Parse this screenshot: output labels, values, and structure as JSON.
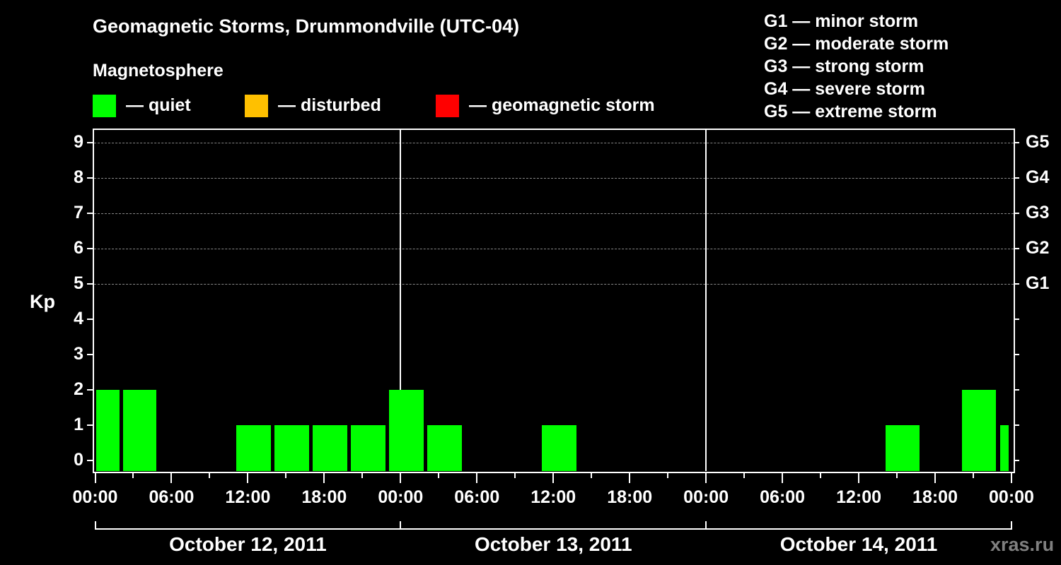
{
  "header": {
    "title": "Geomagnetic Storms, Drummondville (UTC-04)",
    "subtitle": "Magnetosphere"
  },
  "legend": {
    "items": [
      {
        "label": "— quiet",
        "color": "#00ff00"
      },
      {
        "label": "— disturbed",
        "color": "#ffc000"
      },
      {
        "label": "— geomagnetic storm",
        "color": "#ff0000"
      }
    ]
  },
  "storm_scale": [
    "G1 — minor storm",
    "G2 — moderate storm",
    "G3 — strong storm",
    "G4 — severe storm",
    "G5 — extreme storm"
  ],
  "axes": {
    "y_label": "Kp",
    "y_ticks": [
      "0",
      "1",
      "2",
      "3",
      "4",
      "5",
      "6",
      "7",
      "8",
      "9"
    ],
    "g_ticks": [
      {
        "label": "G1",
        "kp": 5
      },
      {
        "label": "G2",
        "kp": 6
      },
      {
        "label": "G3",
        "kp": 7
      },
      {
        "label": "G4",
        "kp": 8
      },
      {
        "label": "G5",
        "kp": 9
      }
    ],
    "x_ticks": [
      "00:00",
      "06:00",
      "12:00",
      "18:00",
      "00:00",
      "06:00",
      "12:00",
      "18:00",
      "00:00",
      "06:00",
      "12:00",
      "18:00",
      "00:00"
    ],
    "dates": [
      "October 12, 2011",
      "October 13, 2011",
      "October 14, 2011"
    ]
  },
  "watermark": "xras.ru",
  "chart_data": {
    "type": "bar",
    "title": "Geomagnetic Storms, Drummondville (UTC-04)",
    "subtitle": "Magnetosphere",
    "xlabel": "",
    "ylabel": "Kp",
    "ylim": [
      0,
      9
    ],
    "y2_labels": {
      "5": "G1",
      "6": "G2",
      "7": "G3",
      "8": "G4",
      "9": "G5"
    },
    "grid": "dashed horizontal at Kp 5-9",
    "legend": [
      "quiet",
      "disturbed",
      "geomagnetic storm"
    ],
    "x_range": [
      "2011-10-12 00:00",
      "2011-10-15 00:00"
    ],
    "bars": [
      {
        "start_h": 0.1,
        "end_h": 1.9,
        "kp": 2,
        "status": "quiet"
      },
      {
        "start_h": 2.2,
        "end_h": 4.8,
        "kp": 2,
        "status": "quiet"
      },
      {
        "start_h": 11.1,
        "end_h": 13.8,
        "kp": 1,
        "status": "quiet"
      },
      {
        "start_h": 14.1,
        "end_h": 16.8,
        "kp": 1,
        "status": "quiet"
      },
      {
        "start_h": 17.1,
        "end_h": 19.8,
        "kp": 1,
        "status": "quiet"
      },
      {
        "start_h": 20.1,
        "end_h": 22.8,
        "kp": 1,
        "status": "quiet"
      },
      {
        "start_h": 23.1,
        "end_h": 25.8,
        "kp": 2,
        "status": "quiet"
      },
      {
        "start_h": 26.1,
        "end_h": 28.8,
        "kp": 1,
        "status": "quiet"
      },
      {
        "start_h": 35.1,
        "end_h": 37.8,
        "kp": 1,
        "status": "quiet"
      },
      {
        "start_h": 62.1,
        "end_h": 64.8,
        "kp": 1,
        "status": "quiet"
      },
      {
        "start_h": 68.1,
        "end_h": 70.8,
        "kp": 2,
        "status": "quiet"
      },
      {
        "start_h": 71.1,
        "end_h": 71.8,
        "kp": 1,
        "status": "quiet"
      }
    ]
  }
}
